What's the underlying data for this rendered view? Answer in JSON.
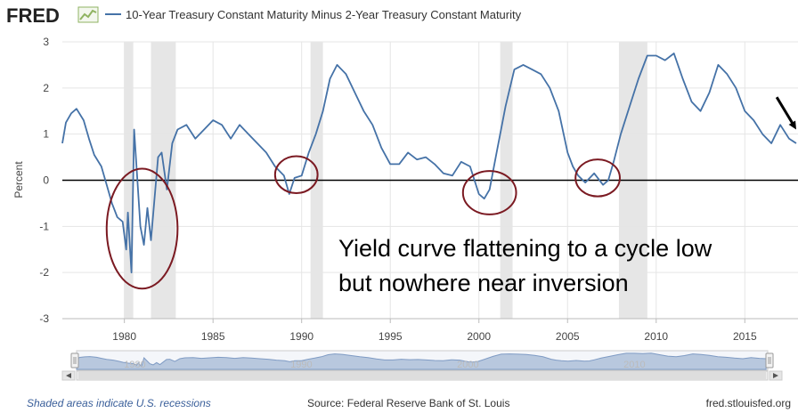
{
  "logo": {
    "text": "FRED",
    "icon": "sparkline-chart-icon"
  },
  "colors": {
    "series": "#4572a7",
    "recession": "#e6e6e6",
    "circle": "#7b1a22",
    "zero_line": "#000000",
    "navigator_fill": "#b8c8de",
    "logo_icon": "#8fb361"
  },
  "chart_data": {
    "type": "line",
    "title": "10-Year Treasury Constant Maturity Minus 2-Year Treasury Constant Maturity",
    "xlabel": "",
    "ylabel": "Percent",
    "xlim": [
      1976.5,
      2018.0
    ],
    "ylim": [
      -3,
      3
    ],
    "x_ticks": [
      1980,
      1985,
      1990,
      1995,
      2000,
      2005,
      2010,
      2015
    ],
    "y_ticks": [
      3,
      2,
      1,
      0,
      -1,
      -2,
      -3
    ],
    "grid": true,
    "series": [
      {
        "name": "10-Year Treasury Constant Maturity Minus 2-Year Treasury Constant Maturity",
        "x": [
          1976.5,
          1976.7,
          1977.0,
          1977.3,
          1977.7,
          1978.0,
          1978.3,
          1978.7,
          1979.0,
          1979.3,
          1979.6,
          1979.9,
          1980.1,
          1980.2,
          1980.4,
          1980.55,
          1980.7,
          1980.9,
          1981.1,
          1981.3,
          1981.5,
          1981.7,
          1981.9,
          1982.1,
          1982.4,
          1982.7,
          1983.0,
          1983.5,
          1984.0,
          1984.5,
          1985.0,
          1985.5,
          1986.0,
          1986.5,
          1987.0,
          1987.5,
          1988.0,
          1988.5,
          1989.0,
          1989.3,
          1989.6,
          1990.0,
          1990.4,
          1990.8,
          1991.2,
          1991.6,
          1992.0,
          1992.5,
          1993.0,
          1993.5,
          1994.0,
          1994.5,
          1995.0,
          1995.5,
          1996.0,
          1996.5,
          1997.0,
          1997.5,
          1998.0,
          1998.5,
          1999.0,
          1999.5,
          2000.0,
          2000.3,
          2000.6,
          2001.0,
          2001.5,
          2002.0,
          2002.5,
          2003.0,
          2003.5,
          2004.0,
          2004.5,
          2005.0,
          2005.3,
          2005.6,
          2006.0,
          2006.5,
          2007.0,
          2007.3,
          2007.6,
          2008.0,
          2008.5,
          2009.0,
          2009.5,
          2010.0,
          2010.5,
          2011.0,
          2011.5,
          2012.0,
          2012.5,
          2013.0,
          2013.5,
          2014.0,
          2014.5,
          2015.0,
          2015.5,
          2016.0,
          2016.5,
          2017.0,
          2017.5,
          2017.9
        ],
        "values": [
          0.8,
          1.25,
          1.45,
          1.55,
          1.3,
          0.9,
          0.55,
          0.3,
          -0.1,
          -0.5,
          -0.8,
          -0.9,
          -1.5,
          -0.7,
          -2.0,
          1.1,
          0.2,
          -1.0,
          -1.4,
          -0.6,
          -1.3,
          -0.4,
          0.5,
          0.6,
          -0.2,
          0.8,
          1.1,
          1.2,
          0.9,
          1.1,
          1.3,
          1.2,
          0.9,
          1.2,
          1.0,
          0.8,
          0.6,
          0.3,
          0.1,
          -0.3,
          0.05,
          0.1,
          0.6,
          1.0,
          1.5,
          2.2,
          2.5,
          2.3,
          1.9,
          1.5,
          1.2,
          0.7,
          0.35,
          0.35,
          0.6,
          0.45,
          0.5,
          0.35,
          0.15,
          0.1,
          0.4,
          0.3,
          -0.3,
          -0.4,
          -0.2,
          0.6,
          1.6,
          2.4,
          2.5,
          2.4,
          2.3,
          2.0,
          1.5,
          0.6,
          0.3,
          0.1,
          -0.05,
          0.15,
          -0.1,
          0.0,
          0.4,
          1.0,
          1.6,
          2.2,
          2.7,
          2.7,
          2.6,
          2.75,
          2.2,
          1.7,
          1.5,
          1.9,
          2.5,
          2.3,
          2.0,
          1.5,
          1.3,
          1.0,
          0.8,
          1.2,
          0.9,
          0.8
        ]
      }
    ],
    "recessions": [
      [
        1980.0,
        1980.5
      ],
      [
        1981.5,
        1982.9
      ],
      [
        1990.5,
        1991.2
      ],
      [
        2001.2,
        2001.9
      ],
      [
        2007.9,
        2009.5
      ]
    ],
    "zero_line": 0,
    "annotation": {
      "lines": [
        "Yield curve flattening to a cycle low",
        "but nowhere near inversion"
      ]
    },
    "circles": [
      {
        "cx": 1981.0,
        "cy": -1.05,
        "rx": 2.0,
        "ry": 1.3
      },
      {
        "cx": 1989.7,
        "cy": 0.12,
        "rx": 1.2,
        "ry": 0.4
      },
      {
        "cx": 2000.6,
        "cy": -0.27,
        "rx": 1.5,
        "ry": 0.47
      },
      {
        "cx": 2006.7,
        "cy": 0.05,
        "rx": 1.25,
        "ry": 0.4
      }
    ],
    "arrow": {
      "from": [
        2016.8,
        1.8
      ],
      "to": [
        2017.9,
        1.1
      ]
    },
    "navigator": {
      "labels": [
        "1980",
        "1990",
        "2000",
        "2010"
      ]
    }
  },
  "footer": {
    "note": "Shaded areas indicate U.S. recessions",
    "source": "Source: Federal Reserve Bank of St. Louis",
    "site": "fred.stlouisfed.org"
  }
}
